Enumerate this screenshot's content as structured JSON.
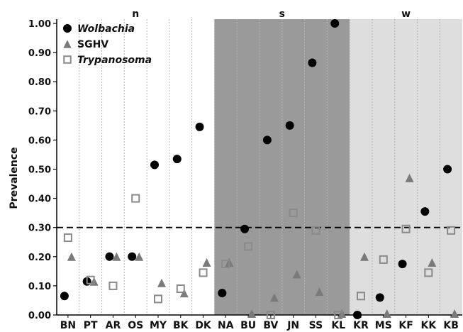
{
  "chart_data": {
    "type": "scatter",
    "ylabel": "Prevalence",
    "xlabel": "",
    "title": "",
    "ylim": [
      0,
      1.0
    ],
    "yticks": [
      "0.00",
      "0.10",
      "0.20",
      "0.30",
      "0.40",
      "0.50",
      "0.60",
      "0.70",
      "0.80",
      "0.90",
      "1.00"
    ],
    "categories": [
      "BN",
      "PT",
      "AR",
      "OS",
      "MY",
      "BK",
      "DK",
      "NA",
      "BU",
      "BV",
      "JN",
      "SS",
      "KL",
      "KR",
      "MS",
      "KF",
      "KK",
      "KB"
    ],
    "regions": [
      {
        "label": "n",
        "start": "BN",
        "end": "DK",
        "shade": "#ffffff"
      },
      {
        "label": "s",
        "start": "NA",
        "end": "KL",
        "shade": "#9a9a9a"
      },
      {
        "label": "w",
        "start": "KR",
        "end": "KB",
        "shade": "#dedede"
      }
    ],
    "threshold": 0.3,
    "legend_position": "top-left",
    "series": [
      {
        "name": "Wolbachia",
        "italic": true,
        "marker": "circle",
        "color": "#000000",
        "values": [
          0.065,
          0.115,
          0.2,
          0.2,
          0.515,
          0.535,
          0.645,
          0.075,
          0.295,
          0.6,
          0.65,
          0.865,
          1.0,
          0.0,
          0.06,
          0.175,
          0.355,
          0.5
        ]
      },
      {
        "name": "SGHV",
        "italic": false,
        "marker": "triangle",
        "color": "#7a7a7a",
        "values": [
          0.2,
          0.115,
          0.2,
          0.2,
          0.11,
          0.075,
          0.18,
          0.18,
          0.0,
          0.06,
          0.14,
          0.08,
          0.0,
          0.2,
          0.0,
          0.47,
          0.18,
          0.0
        ]
      },
      {
        "name": "Trypanosoma",
        "italic": true,
        "marker": "square-open",
        "color": "#8a8a8a",
        "values": [
          0.265,
          0.12,
          0.1,
          0.4,
          0.055,
          0.09,
          0.145,
          0.175,
          0.235,
          0.0,
          0.35,
          0.29,
          0.0,
          0.065,
          0.19,
          0.295,
          0.145,
          0.29
        ]
      }
    ]
  }
}
